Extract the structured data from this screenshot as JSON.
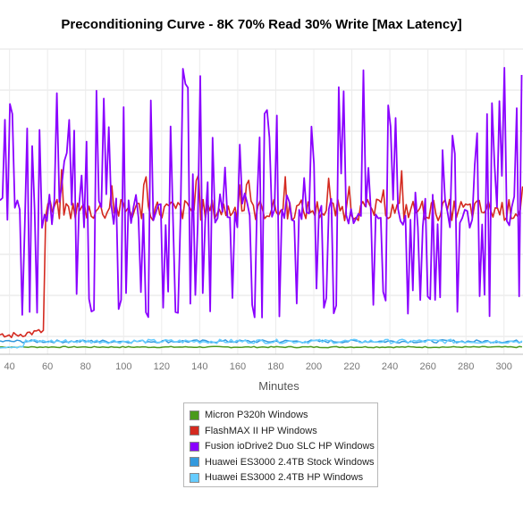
{
  "chart_data": {
    "type": "line",
    "title": "Preconditioning Curve - 8K 70% Read 30% Write [Max Latency]",
    "xlabel": "Minutes",
    "ylabel": "",
    "xlim": [
      35,
      310
    ],
    "x_ticks": [
      40,
      60,
      80,
      100,
      120,
      140,
      160,
      180,
      200,
      220,
      240,
      260,
      280,
      300
    ],
    "grid": true,
    "legend_position": "bottom",
    "series": [
      {
        "name": "Micron P320h Windows",
        "color": "#4a9a1c",
        "points": [
          [
            35,
            0.5
          ],
          [
            310,
            0.5
          ]
        ]
      },
      {
        "name": "FlashMAX II HP Windows",
        "color": "#d42a20",
        "points": [
          [
            35,
            1.2
          ],
          [
            59,
            1.6
          ],
          [
            60,
            13
          ],
          [
            62,
            12
          ],
          [
            310,
            13
          ]
        ]
      },
      {
        "name": "Fusion ioDrive2 Duo SLC HP Windows",
        "color": "#8a00ff",
        "points": [
          [
            35,
            12
          ],
          [
            310,
            12
          ]
        ]
      },
      {
        "name": "Huawei ES3000 2.4TB Stock Windows",
        "color": "#3399dd",
        "points": [
          [
            35,
            1
          ],
          [
            310,
            1
          ]
        ]
      },
      {
        "name": "Huawei ES3000 2.4TB HP Windows",
        "color": "#66ccff",
        "points": [
          [
            35,
            0.8
          ],
          [
            310,
            0.9
          ]
        ]
      }
    ]
  }
}
